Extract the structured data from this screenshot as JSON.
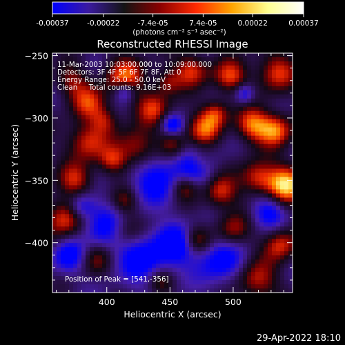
{
  "colorbar": {
    "ticks": [
      "-0.00037",
      "-0.00022",
      "-7.4e-05",
      "7.4e-05",
      "0.00022",
      "0.00037"
    ],
    "unit": "(photons cm⁻² s⁻¹ asec⁻²)",
    "range": [
      -0.00037,
      0.00037
    ],
    "colormap": [
      "#0000ff",
      "#3b1aa0",
      "#141414",
      "#8a0000",
      "#ff2a00",
      "#ffa500",
      "#ffff90",
      "#ffffff"
    ]
  },
  "chart_data": {
    "type": "heatmap",
    "title": "Reconstructed RHESSI Image",
    "xlabel": "Heliocentric X (arcsec)",
    "ylabel": "Heliocentric Y (arcsec)",
    "xlim": [
      357,
      547
    ],
    "ylim": [
      -440,
      -248
    ],
    "xticks": [
      400,
      450,
      500
    ],
    "yticks": [
      -250,
      -300,
      -350,
      -400
    ],
    "peak": [
      541,
      -356
    ],
    "grid": false
  },
  "annotations": {
    "time": "11-Mar-2003 10:03:00.000 to 10:09:00.000",
    "detectors": "Detectors: 3F 4F 5F 6F 7F 8F, Att 0",
    "energy": "Energy Range: 25.0 - 50.0 keV",
    "clean": "Clean     Total counts: 9.16E+03",
    "peak_label": "Position of Peak = [541,-356]"
  },
  "timestamp": "29-Apr-2022 18:10"
}
